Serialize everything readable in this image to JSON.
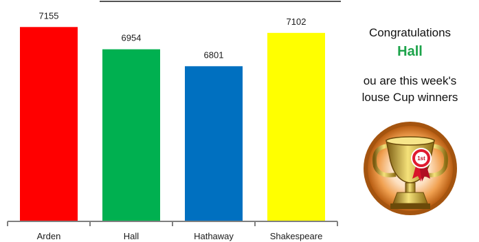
{
  "chart_data": {
    "type": "bar",
    "categories": [
      "Arden",
      "Hall",
      "Hathaway",
      "Shakespeare"
    ],
    "values": [
      7155,
      6954,
      6801,
      7102
    ],
    "colors": [
      "#ff0000",
      "#00b050",
      "#0070c0",
      "#ffff00"
    ],
    "title": "",
    "xlabel": "",
    "ylabel": "",
    "ylim": [
      5400,
      7250
    ],
    "grid": false,
    "legend": "none"
  },
  "panel": {
    "congrats": "Congratulations",
    "winner": "Hall",
    "winner_color": "#1ca34a",
    "message_line1": "ou are this week's",
    "message_line2": "louse Cup winners",
    "trophy_icon": "trophy-icon",
    "trophy_badge": "1st"
  }
}
